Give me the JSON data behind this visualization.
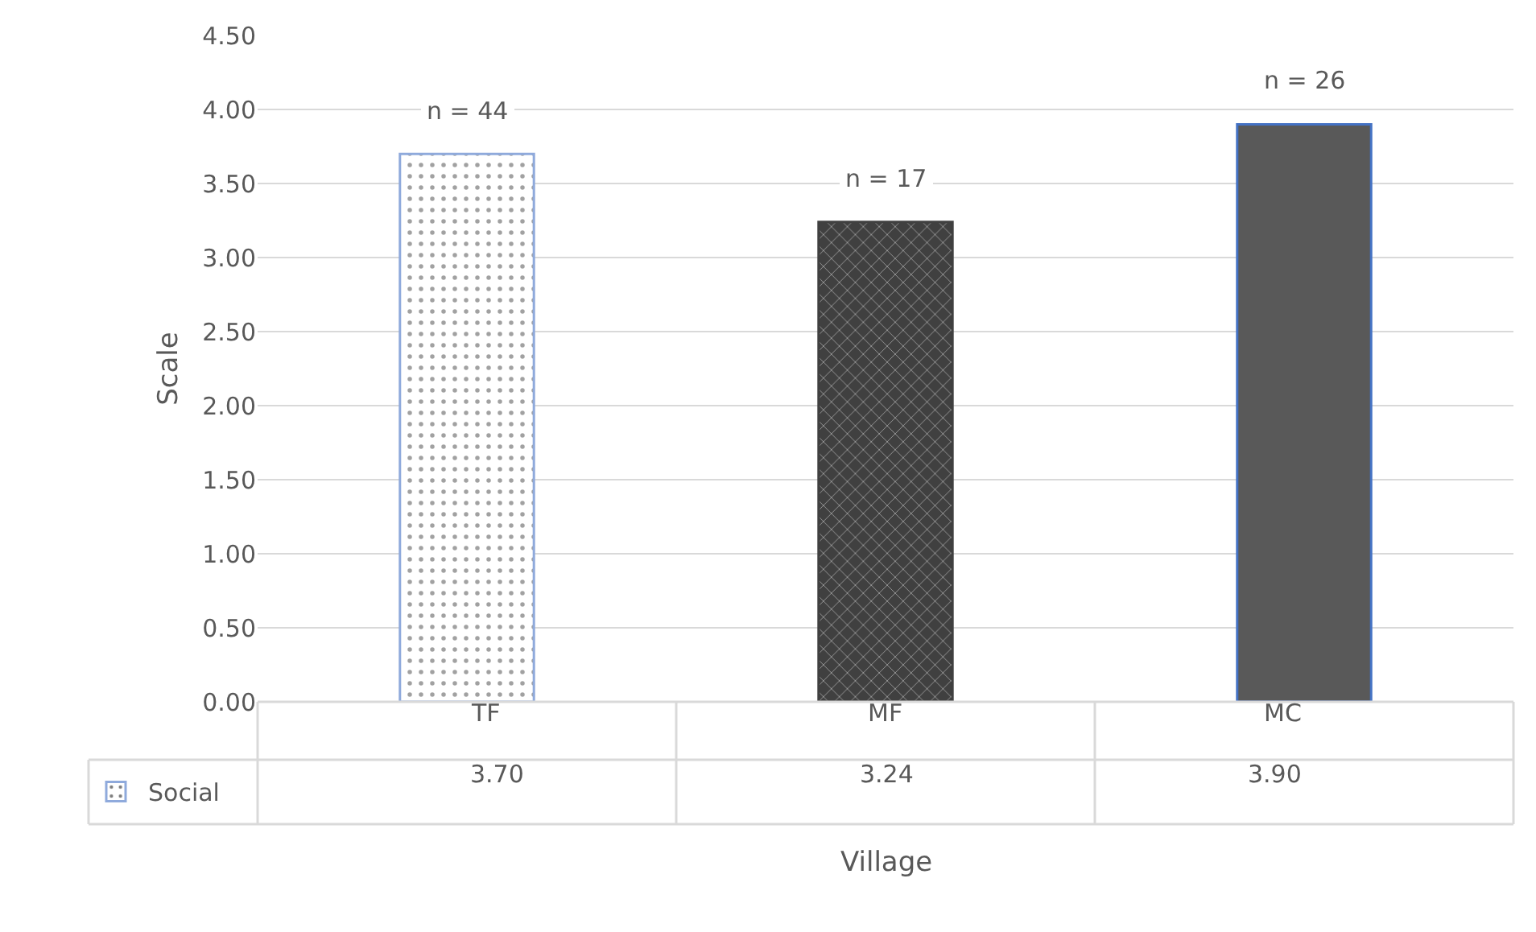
{
  "chart_data": {
    "type": "bar",
    "xlabel": "Village",
    "ylabel": "Scale",
    "categories": [
      "TF",
      "MF",
      "MC"
    ],
    "series": [
      {
        "name": "Social",
        "colors": [
          "#8faadc",
          "#404040",
          "#595959"
        ],
        "values": [
          3.7,
          3.24,
          3.9
        ],
        "value_labels": [
          "3.70",
          "3.24",
          "3.90"
        ]
      }
    ],
    "ylim": [
      0,
      4.5
    ],
    "yticks": [
      {
        "value": 0,
        "label": "0.00"
      },
      {
        "value": 0.5,
        "label": "0.50"
      },
      {
        "value": 1,
        "label": "1.00"
      },
      {
        "value": 1.5,
        "label": "1.50"
      },
      {
        "value": 2,
        "label": "2.00"
      },
      {
        "value": 2.5,
        "label": "2.50"
      },
      {
        "value": 3,
        "label": "3.00"
      },
      {
        "value": 3.5,
        "label": "3.50"
      },
      {
        "value": 4,
        "label": "4.00"
      },
      {
        "value": 4.5,
        "label": "4.50"
      }
    ],
    "grid": "y",
    "legend": "bottom left",
    "annotations": [
      "n = 44",
      "n = 17",
      "n = 26"
    ]
  }
}
